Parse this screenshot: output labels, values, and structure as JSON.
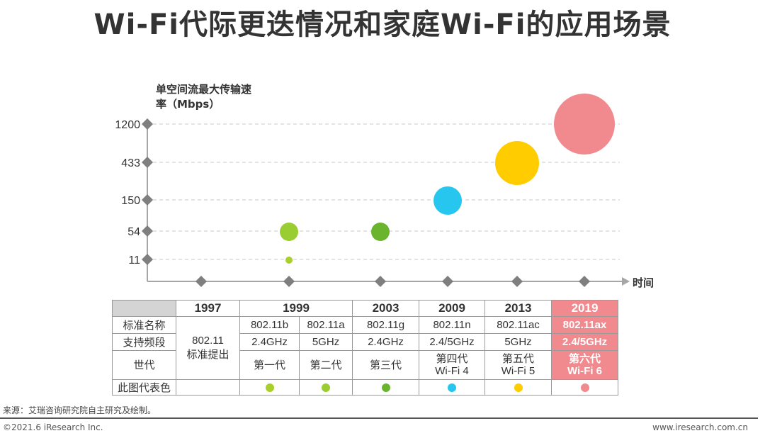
{
  "title": "Wi-Fi代际更迭情况和家庭Wi-Fi的应用场景",
  "chart_data": {
    "type": "scatter",
    "ylabel_lines": [
      "单空间流最大传输速",
      "率（Mbps）"
    ],
    "xlabel": "时间",
    "y_ticks": [
      "1200",
      "433",
      "150",
      "54",
      "11"
    ],
    "x_categories": [
      "1997",
      "1999",
      "2003",
      "2009",
      "2013",
      "2019"
    ],
    "points": [
      {
        "x": "1999",
        "y": "11",
        "value": 11,
        "color": "#a8cf2a",
        "size": "tiny"
      },
      {
        "x": "1999",
        "y": "54",
        "value": 54,
        "color": "#9acd32",
        "size": "small"
      },
      {
        "x": "2003",
        "y": "54",
        "value": 54,
        "color": "#6ab42e",
        "size": "small"
      },
      {
        "x": "2009",
        "y": "150",
        "value": 150,
        "color": "#26c6ef",
        "size": "medium"
      },
      {
        "x": "2013",
        "y": "433",
        "value": 433,
        "color": "#ffcc00",
        "size": "large"
      },
      {
        "x": "2019",
        "y": "1200",
        "value": 1200,
        "color": "#f08a8e",
        "size": "xlarge"
      }
    ]
  },
  "table": {
    "years": [
      "1997",
      "1999",
      "2003",
      "2009",
      "2013",
      "2019"
    ],
    "row_labels": {
      "name": "标准名称",
      "band": "支持频段",
      "gen": "世代",
      "color": "此图代表色"
    },
    "merged_1997": "802.11标准提出",
    "merged_1997_lines": [
      "802.11",
      "标准提出"
    ],
    "names": [
      "802.11b",
      "802.11a",
      "802.11g",
      "802.11n",
      "802.11ac",
      "802.11ax"
    ],
    "bands": [
      "2.4GHz",
      "5GHz",
      "2.4GHz",
      "2.4/5GHz",
      "5GHz",
      "2.4/5GHz"
    ],
    "generations": [
      "第一代",
      "第二代",
      "第三代",
      "第四代Wi-Fi 4",
      "第五代Wi-Fi 5",
      "第六代Wi-Fi 6"
    ],
    "gen_lines": [
      [
        "第一代"
      ],
      [
        "第二代"
      ],
      [
        "第三代"
      ],
      [
        "第四代",
        "Wi-Fi 4"
      ],
      [
        "第五代",
        "Wi-Fi 5"
      ],
      [
        "第六代",
        "Wi-Fi 6"
      ]
    ],
    "colors": [
      "#a8cf2a",
      "#9acd32",
      "#6ab42e",
      "#26c6ef",
      "#ffcc00",
      "#f08a8e"
    ]
  },
  "footer": {
    "source": "来源：艾瑞咨询研究院自主研究及绘制。",
    "copyright": "©2021.6 iResearch Inc.",
    "site": "www.iresearch.com.cn"
  }
}
